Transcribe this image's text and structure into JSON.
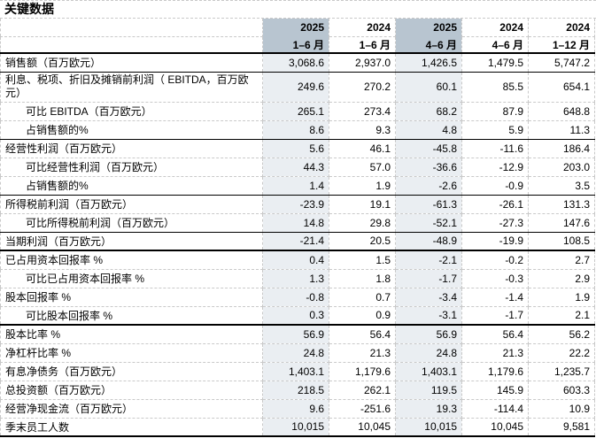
{
  "title": "关键数据",
  "colors": {
    "header_highlight": "#b8c5d0",
    "body_highlight": "#eaeef2",
    "grid_dashed": "#c9c9c9",
    "section_rule": "#000000"
  },
  "table": {
    "columns": [
      {
        "year": "2025",
        "period": "1–6 月",
        "highlight": true
      },
      {
        "year": "2024",
        "period": "1–6 月",
        "highlight": false
      },
      {
        "year": "2025",
        "period": "4–6 月",
        "highlight": true
      },
      {
        "year": "2024",
        "period": "4–6 月",
        "highlight": false
      },
      {
        "year": "2024",
        "period": "1–12 月",
        "highlight": false
      }
    ],
    "rows": [
      {
        "label": "销售额（百万欧元）",
        "indent": false,
        "tall": false,
        "divider": "solid",
        "values": [
          "3,068.6",
          "2,937.0",
          "1,426.5",
          "1,479.5",
          "5,747.2"
        ]
      },
      {
        "label": "利息、税项、折旧及摊销前利润（ EBITDA，百万欧元）",
        "indent": false,
        "tall": true,
        "divider": "dashed",
        "values": [
          "249.6",
          "270.2",
          "60.1",
          "85.5",
          "654.1"
        ]
      },
      {
        "label": "可比 EBITDA（百万欧元）",
        "indent": true,
        "tall": false,
        "divider": "dashed",
        "values": [
          "265.1",
          "273.4",
          "68.2",
          "87.9",
          "648.8"
        ]
      },
      {
        "label": "占销售额的%",
        "indent": true,
        "tall": false,
        "divider": "solid",
        "values": [
          "8.6",
          "9.3",
          "4.8",
          "5.9",
          "11.3"
        ]
      },
      {
        "label": "经营性利润（百万欧元）",
        "indent": false,
        "tall": false,
        "divider": "dashed",
        "values": [
          "5.6",
          "46.1",
          "-45.8",
          "-11.6",
          "186.4"
        ]
      },
      {
        "label": "可比经营性利润（百万欧元）",
        "indent": true,
        "tall": false,
        "divider": "dashed",
        "values": [
          "44.3",
          "57.0",
          "-36.6",
          "-12.9",
          "203.0"
        ]
      },
      {
        "label": "占销售额的%",
        "indent": true,
        "tall": false,
        "divider": "solid",
        "values": [
          "1.4",
          "1.9",
          "-2.6",
          "-0.9",
          "3.5"
        ]
      },
      {
        "label": "所得税前利润（百万欧元）",
        "indent": false,
        "tall": false,
        "divider": "dashed",
        "values": [
          "-23.9",
          "19.1",
          "-61.3",
          "-26.1",
          "131.3"
        ]
      },
      {
        "label": "可比所得税前利润（百万欧元）",
        "indent": true,
        "tall": false,
        "divider": "solid",
        "values": [
          "14.8",
          "29.8",
          "-52.1",
          "-27.3",
          "147.6"
        ]
      },
      {
        "label": "当期利润（百万欧元）",
        "indent": false,
        "tall": false,
        "divider": "thick",
        "values": [
          "-21.4",
          "20.5",
          "-48.9",
          "-19.9",
          "108.5"
        ]
      },
      {
        "label": "已占用资本回报率 %",
        "indent": false,
        "tall": false,
        "divider": "dashed",
        "values": [
          "0.4",
          "1.5",
          "-2.1",
          "-0.2",
          "2.7"
        ]
      },
      {
        "label": "可比已占用资本回报率 %",
        "indent": true,
        "tall": false,
        "divider": "dashed",
        "values": [
          "1.3",
          "1.8",
          "-1.7",
          "-0.3",
          "2.9"
        ]
      },
      {
        "label": "股本回报率 %",
        "indent": false,
        "tall": false,
        "divider": "dashed",
        "values": [
          "-0.8",
          "0.7",
          "-3.4",
          "-1.4",
          "1.9"
        ]
      },
      {
        "label": "可比股本回报率 %",
        "indent": true,
        "tall": false,
        "divider": "thick",
        "values": [
          "0.3",
          "0.9",
          "-3.1",
          "-1.7",
          "2.1"
        ]
      },
      {
        "label": "股本比率 %",
        "indent": false,
        "tall": false,
        "divider": "dashed",
        "values": [
          "56.9",
          "56.4",
          "56.9",
          "56.4",
          "56.2"
        ]
      },
      {
        "label": "净杠杆比率 %",
        "indent": false,
        "tall": false,
        "divider": "dashed",
        "values": [
          "24.8",
          "21.3",
          "24.8",
          "21.3",
          "22.2"
        ]
      },
      {
        "label": "有息净债务（百万欧元）",
        "indent": false,
        "tall": false,
        "divider": "dashed",
        "values": [
          "1,403.1",
          "1,179.6",
          "1,403.1",
          "1,179.6",
          "1,235.7"
        ]
      },
      {
        "label": "总投资额（百万欧元）",
        "indent": false,
        "tall": false,
        "divider": "dashed",
        "values": [
          "218.5",
          "262.1",
          "119.5",
          "145.9",
          "603.3"
        ]
      },
      {
        "label": "经营净现金流（百万欧元）",
        "indent": false,
        "tall": false,
        "divider": "dashed",
        "values": [
          "9.6",
          "-251.6",
          "19.3",
          "-114.4",
          "10.9"
        ]
      },
      {
        "label": "季末员工人数",
        "indent": false,
        "tall": false,
        "divider": "thick",
        "values": [
          "10,015",
          "10,045",
          "10,015",
          "10,045",
          "9,581"
        ]
      }
    ]
  }
}
